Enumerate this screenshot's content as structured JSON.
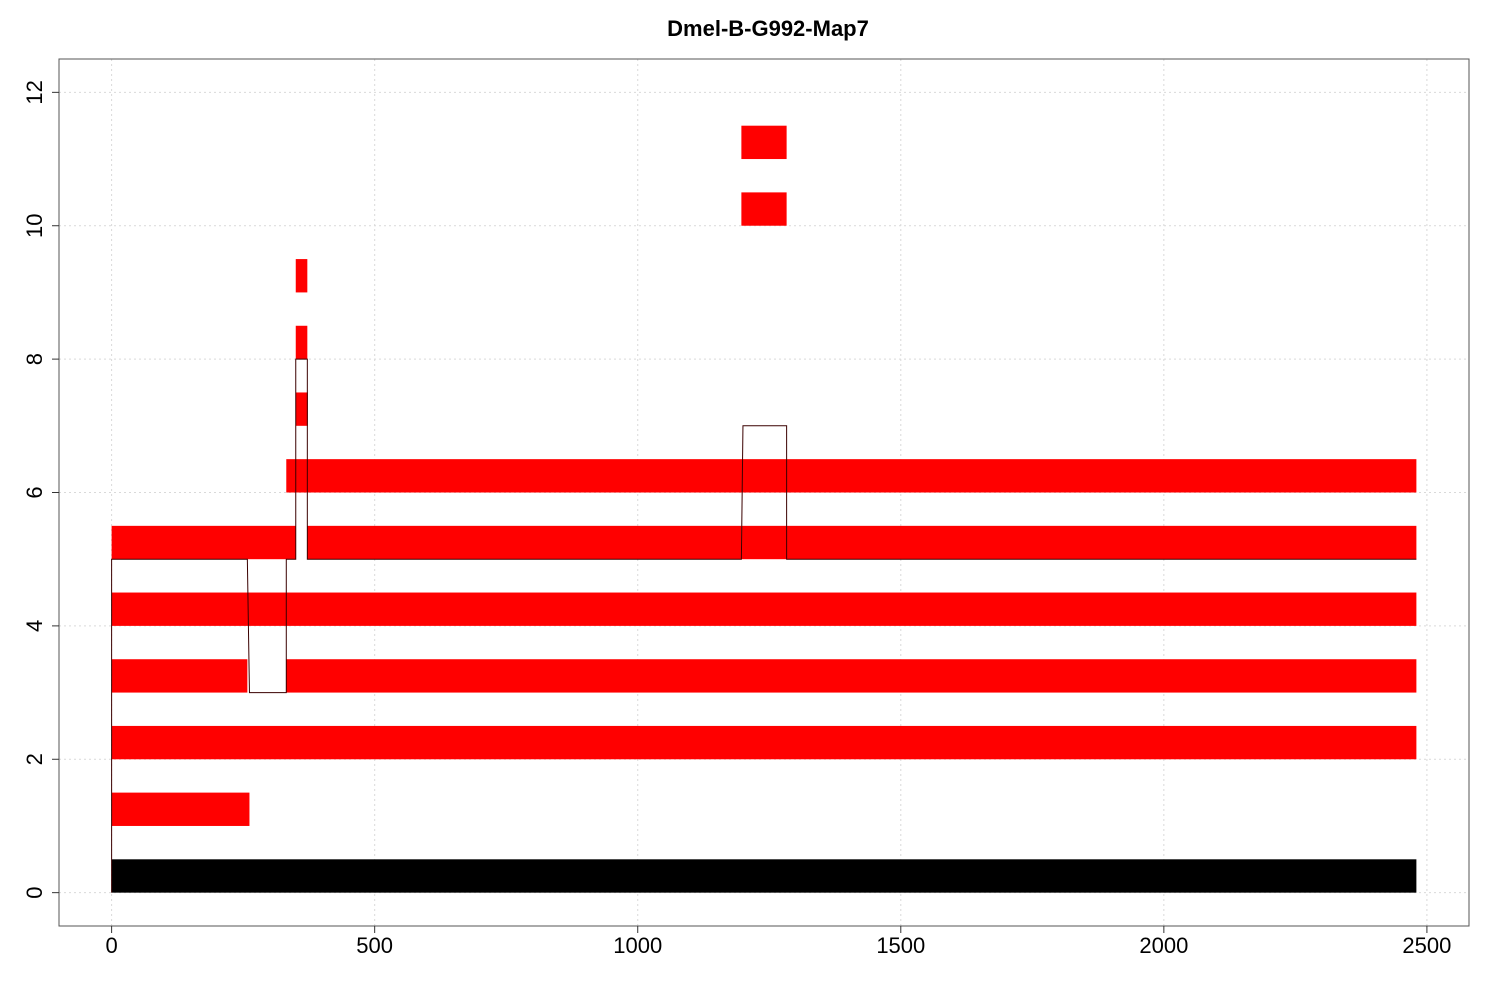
{
  "chart_data": {
    "type": "bar",
    "title": "Dmel-B-G992-Map7",
    "xlabel": "",
    "ylabel": "",
    "xlim": [
      -100,
      2580
    ],
    "ylim": [
      -0.5,
      12.5
    ],
    "x_ticks": [
      0,
      500,
      1000,
      1500,
      2000,
      2500
    ],
    "y_ticks": [
      0,
      2,
      4,
      6,
      8,
      10,
      12
    ],
    "grid": true,
    "reference_bar": {
      "x0": 0,
      "x1": 2480,
      "y0": 0,
      "y1": 0.5,
      "color": "#000000"
    },
    "segments": [
      {
        "x0": 0,
        "x1": 262,
        "y0": 1,
        "y1": 1.5
      },
      {
        "x0": 0,
        "x1": 2480,
        "y0": 2,
        "y1": 2.5
      },
      {
        "x0": 0,
        "x1": 258,
        "y0": 3,
        "y1": 3.5
      },
      {
        "x0": 332,
        "x1": 2480,
        "y0": 3,
        "y1": 3.5
      },
      {
        "x0": 0,
        "x1": 2480,
        "y0": 4,
        "y1": 4.5
      },
      {
        "x0": 0,
        "x1": 350,
        "y0": 5,
        "y1": 5.5
      },
      {
        "x0": 372,
        "x1": 1197,
        "y0": 5,
        "y1": 5.5
      },
      {
        "x0": 1197,
        "x1": 1283,
        "y0": 5,
        "y1": 5.5
      },
      {
        "x0": 1283,
        "x1": 2480,
        "y0": 5,
        "y1": 5.5
      },
      {
        "x0": 332,
        "x1": 2480,
        "y0": 6,
        "y1": 6.5
      },
      {
        "x0": 350,
        "x1": 373,
        "y0": 7,
        "y1": 7.5
      },
      {
        "x0": 350,
        "x1": 372,
        "y0": 8,
        "y1": 8.5
      },
      {
        "x0": 350,
        "x1": 372,
        "y0": 9,
        "y1": 9.5
      },
      {
        "x0": 1197,
        "x1": 1283,
        "y0": 10,
        "y1": 10.5
      },
      {
        "x0": 1197,
        "x1": 1283,
        "y0": 11,
        "y1": 11.5
      }
    ],
    "path_line": {
      "color": "#3a0000",
      "points": [
        [
          0,
          0
        ],
        [
          0,
          5
        ],
        [
          258,
          5
        ],
        [
          262,
          3
        ],
        [
          332,
          3
        ],
        [
          332,
          5
        ],
        [
          350,
          5
        ],
        [
          350,
          8
        ],
        [
          372,
          8
        ],
        [
          372,
          5
        ],
        [
          1197,
          5
        ],
        [
          1200,
          7
        ],
        [
          1283,
          7
        ],
        [
          1283,
          5
        ],
        [
          2480,
          5
        ]
      ]
    },
    "bar_color": "#ff0000"
  }
}
